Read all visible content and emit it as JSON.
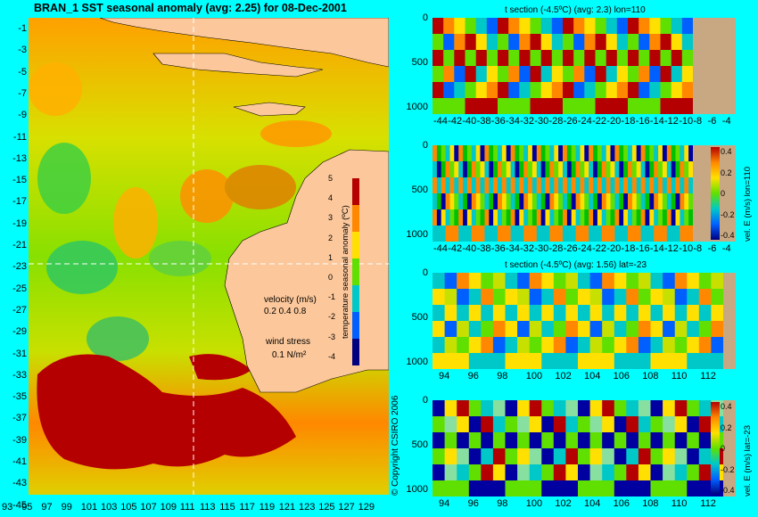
{
  "map": {
    "title": "BRAN_1  SST seasonal anomaly  (avg: 2.25) for 08-Dec-2001",
    "lat_labels": [
      "-1",
      "-3",
      "-5",
      "-7",
      "-9",
      "-11",
      "-13",
      "-15",
      "-17",
      "-19",
      "-21",
      "-23",
      "-25",
      "-27",
      "-29",
      "-31",
      "-33",
      "-35",
      "-37",
      "-39",
      "-41",
      "-43",
      "-45"
    ],
    "lon_labels": [
      "93",
      "95",
      "97",
      "99",
      "101",
      "103",
      "105",
      "107",
      "109",
      "111",
      "113",
      "115",
      "117",
      "119",
      "121",
      "123",
      "125",
      "127",
      "129"
    ],
    "colorbar": {
      "label": "temperature seasonal anomaly (ºC)",
      "ticks": [
        "5",
        "4",
        "3",
        "2",
        "1",
        "0",
        "-1",
        "-2",
        "-3",
        "-4"
      ]
    },
    "legend": {
      "velocity_label": "velocity (m/s)",
      "velocity_values": "0.2 0.4 0.8",
      "wind_label": "wind stress",
      "wind_value": "0.1 N/m²"
    },
    "section_lines": {
      "lon": 110,
      "lat": -23
    }
  },
  "copyright": "© Copyright CSIRO 2006",
  "panels": [
    {
      "title": "t section (-4.5ºC)  (avg: 2.3) lon=110",
      "y_ticks": [
        "0",
        "500",
        "1000"
      ],
      "x_ticks": [
        "-44",
        "-42",
        "-40",
        "-38",
        "-36",
        "-34",
        "-32",
        "-30",
        "-28",
        "-26",
        "-24",
        "-22",
        "-20",
        "-18",
        "-16",
        "-14",
        "-12",
        "-10",
        "-8",
        "-6",
        "-4"
      ],
      "colorbar_label": "",
      "colorbar_ticks": []
    },
    {
      "title": "",
      "y_ticks": [
        "0",
        "500",
        "1000"
      ],
      "x_ticks": [
        "-44",
        "-42",
        "-40",
        "-38",
        "-36",
        "-34",
        "-32",
        "-30",
        "-28",
        "-26",
        "-24",
        "-22",
        "-20",
        "-18",
        "-16",
        "-14",
        "-12",
        "-10",
        "-8",
        "-6",
        "-4"
      ],
      "colorbar_label": "vel. E (m/s) lon=110",
      "colorbar_ticks": [
        "0.4",
        "0.2",
        "0",
        "-0.2",
        "-0.4"
      ]
    },
    {
      "title": "t section (-4.5ºC)  (avg: 1.56) lat=-23",
      "y_ticks": [
        "0",
        "500",
        "1000"
      ],
      "x_ticks": [
        "94",
        "96",
        "98",
        "100",
        "102",
        "104",
        "106",
        "108",
        "110",
        "112"
      ],
      "colorbar_label": "",
      "colorbar_ticks": []
    },
    {
      "title": "",
      "y_ticks": [
        "0",
        "500",
        "1000"
      ],
      "x_ticks": [
        "94",
        "96",
        "98",
        "100",
        "102",
        "104",
        "106",
        "108",
        "110",
        "112"
      ],
      "colorbar_label": "vel. E (m/s) lat=-23",
      "colorbar_ticks": [
        "0.4",
        "0.2",
        "0",
        "-0.2",
        "-0.4"
      ]
    }
  ],
  "colors": {
    "background": "#00ffff",
    "land": "#fcc89b",
    "seafloor": "#c8a882",
    "anomaly_hot": "#b40000"
  }
}
